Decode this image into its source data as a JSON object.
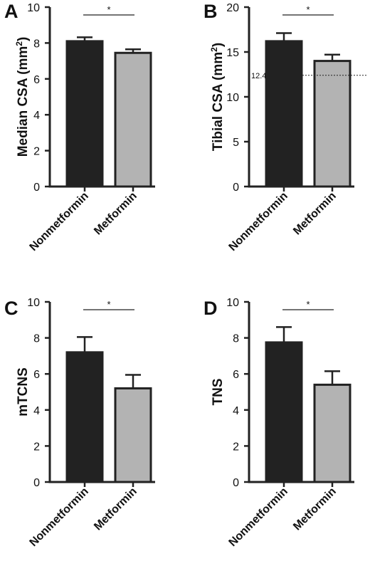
{
  "chart_data": [
    {
      "type": "bar",
      "panel": "A",
      "ylabel": "Median CSA (mm",
      "ylabel_sup": "2",
      "ylabel_tail": ")",
      "categories": [
        "Nonmetformin",
        "Metformin"
      ],
      "values": [
        8.1,
        7.45
      ],
      "errors": [
        0.22,
        0.2
      ],
      "ylim": [
        0,
        10
      ],
      "yticks": [
        "0",
        "2",
        "4",
        "6",
        "8",
        "10"
      ],
      "significance": "*",
      "colors": [
        "#222222",
        "#b3b3b3"
      ]
    },
    {
      "type": "bar",
      "panel": "B",
      "ylabel": "Tibial CSA (mm",
      "ylabel_sup": "2",
      "ylabel_tail": ")",
      "categories": [
        "Nonmetformin",
        "Metformin"
      ],
      "values": [
        16.2,
        14.0
      ],
      "errors": [
        0.9,
        0.7
      ],
      "ylim": [
        0,
        20
      ],
      "yticks": [
        "0",
        "5",
        "10",
        "15",
        "20"
      ],
      "significance": "*",
      "reference_line": {
        "value": 12.4,
        "label": "12.4",
        "style": "dotted"
      },
      "colors": [
        "#222222",
        "#b3b3b3"
      ]
    },
    {
      "type": "bar",
      "panel": "C",
      "ylabel": "mTCNS",
      "categories": [
        "Nonmetformin",
        "Metformin"
      ],
      "values": [
        7.2,
        5.2
      ],
      "errors": [
        0.85,
        0.75
      ],
      "ylim": [
        0,
        10
      ],
      "yticks": [
        "0",
        "2",
        "4",
        "6",
        "8",
        "10"
      ],
      "significance": "*",
      "colors": [
        "#222222",
        "#b3b3b3"
      ]
    },
    {
      "type": "bar",
      "panel": "D",
      "ylabel": "TNS",
      "categories": [
        "Nonmetformin",
        "Metformin"
      ],
      "values": [
        7.75,
        5.4
      ],
      "errors": [
        0.85,
        0.75
      ],
      "ylim": [
        0,
        10
      ],
      "yticks": [
        "0",
        "2",
        "4",
        "6",
        "8",
        "10"
      ],
      "significance": "*",
      "colors": [
        "#222222",
        "#b3b3b3"
      ]
    }
  ]
}
